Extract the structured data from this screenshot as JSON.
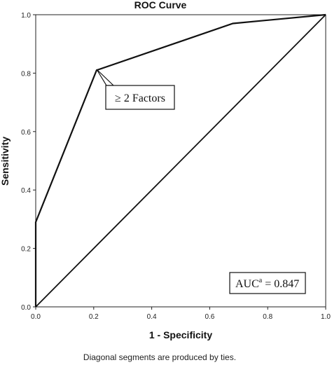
{
  "chart_data": {
    "type": "line",
    "title": "ROC Curve",
    "xlabel": "1 - Specificity",
    "ylabel": "Sensitivity",
    "xlim": [
      0,
      1
    ],
    "ylim": [
      0,
      1
    ],
    "xticks": [
      "0.0",
      "0.2",
      "0.4",
      "0.6",
      "0.8",
      "1.0"
    ],
    "yticks": [
      "0.0",
      "0.2",
      "0.4",
      "0.6",
      "0.8",
      "1.0"
    ],
    "grid": false,
    "series": [
      {
        "x": [
          0.0,
          0.0,
          0.21,
          0.68,
          1.0
        ],
        "y": [
          0.0,
          0.29,
          0.81,
          0.97,
          1.0
        ]
      },
      {
        "x": [
          0.0,
          1.0
        ],
        "y": [
          0.0,
          1.0
        ]
      }
    ],
    "annotations": [
      {
        "text": "≥ 2 Factors",
        "point": [
          0.21,
          0.81
        ]
      }
    ],
    "auc_label": "AUC",
    "auc_superscript": "a",
    "auc_value": "= 0.847",
    "footnote": "Diagonal segments are produced by ties.",
    "line_color": "#111111"
  }
}
